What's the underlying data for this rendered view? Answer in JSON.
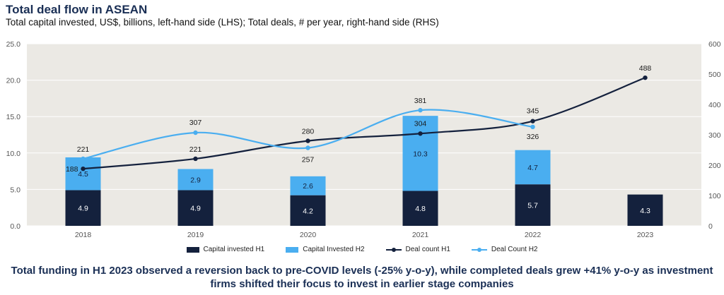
{
  "title": "Total deal flow in ASEAN",
  "subtitle": "Total capital invested, US$, billions, left-hand side (LHS); Total deals, # per year, right-hand side (RHS)",
  "footer": "Total funding in H1 2023 observed a reversion back to pre-COVID levels (-25% y-o-y), while completed deals grew +41% y-o-y as investment firms shifted their focus to invest in earlier stage companies",
  "colors": {
    "capital_h1": "#14213d",
    "capital_h2": "#4aaef0",
    "deal_h1": "#14213d",
    "deal_h2": "#4aaef0",
    "plot_bg": "#ebe9e4",
    "grid": "#ffffff"
  },
  "legend": [
    {
      "label": "Capital invested H1",
      "kind": "bar",
      "color": "#14213d"
    },
    {
      "label": "Capital Invested H2",
      "kind": "bar",
      "color": "#4aaef0"
    },
    {
      "label": "Deal count H1",
      "kind": "line",
      "color": "#14213d"
    },
    {
      "label": "Deal Count H2",
      "kind": "line",
      "color": "#4aaef0"
    }
  ],
  "chart_data": {
    "type": "bar",
    "categories": [
      "2018",
      "2019",
      "2020",
      "2021",
      "2022",
      "2023"
    ],
    "series": [
      {
        "name": "Capital invested H1",
        "type": "bar",
        "axis": "left",
        "values": [
          4.9,
          4.9,
          4.2,
          4.8,
          5.7,
          4.3
        ]
      },
      {
        "name": "Capital Invested H2",
        "type": "bar",
        "axis": "left",
        "values": [
          4.5,
          2.9,
          2.6,
          10.3,
          4.7,
          null
        ]
      },
      {
        "name": "Deal count H1",
        "type": "line",
        "axis": "right",
        "values": [
          188,
          221,
          280,
          304,
          345,
          488
        ]
      },
      {
        "name": "Deal Count H2",
        "type": "line",
        "axis": "right",
        "values": [
          221,
          307,
          257,
          381,
          326,
          null
        ]
      }
    ],
    "y_left": {
      "min": 0,
      "max": 25,
      "ticks": [
        "0.0",
        "5.0",
        "10.0",
        "15.0",
        "20.0",
        "25.0"
      ]
    },
    "y_right": {
      "min": 0,
      "max": 600,
      "ticks": [
        "0",
        "100",
        "200",
        "300",
        "400",
        "500",
        "600"
      ]
    },
    "grid": true,
    "legend_position": "bottom"
  }
}
